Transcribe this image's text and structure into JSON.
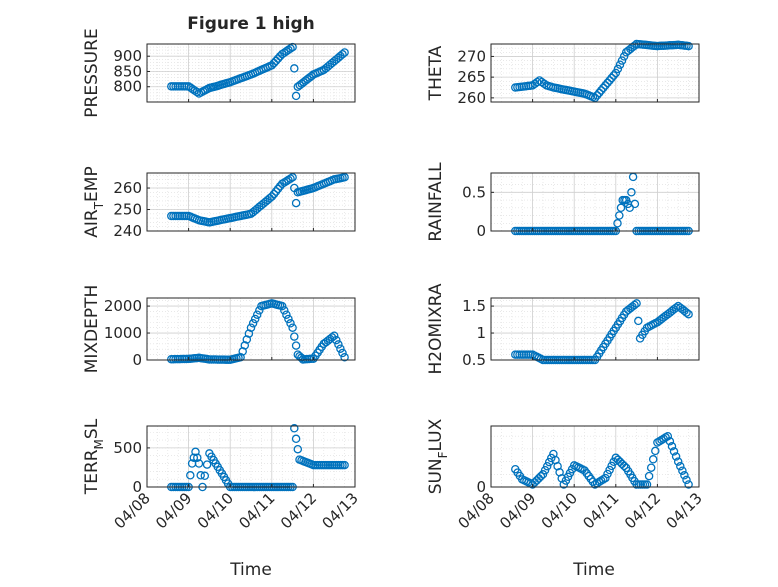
{
  "figure": {
    "title": "Figure 1 high",
    "xlabel": "Time",
    "x_tick_labels": [
      "04/08",
      "04/09",
      "04/10",
      "04/11",
      "04/12",
      "04/13"
    ],
    "marker_color": "#0072BD",
    "axis_color": "#262626",
    "grid_color": "#dcdcdc"
  },
  "chart_data": [
    {
      "type": "scatter",
      "ylabel": "PRESSURE",
      "ylim": [
        750,
        940
      ],
      "yticks": [
        800,
        850,
        900
      ],
      "grid": true,
      "x": [
        "04/08 14:00",
        "04/09 00:00",
        "04/09 06:00",
        "04/09 12:00",
        "04/09 15:00",
        "04/10 00:00",
        "04/10 12:00",
        "04/11 00:00",
        "04/11 06:00",
        "04/11 12:00",
        "04/11 13:00",
        "04/11 14:00",
        "04/11 15:00",
        "04/12 00:00",
        "04/12 06:00",
        "04/12 18:00"
      ],
      "y": [
        801,
        801,
        778,
        796,
        800,
        815,
        840,
        870,
        907,
        930,
        860,
        770,
        800,
        840,
        855,
        912
      ]
    },
    {
      "type": "scatter",
      "ylabel": "THETA",
      "ylim": [
        259,
        273
      ],
      "yticks": [
        260,
        265,
        270
      ],
      "grid": true,
      "x": [
        "04/08 14:00",
        "04/09 00:00",
        "04/09 04:00",
        "04/09 08:00",
        "04/09 12:00",
        "04/10 00:00",
        "04/10 06:00",
        "04/10 12:00",
        "04/11 00:00",
        "04/11 06:00",
        "04/11 12:00",
        "04/12 00:00",
        "04/12 12:00",
        "04/12 18:00"
      ],
      "y": [
        262.5,
        263,
        264.2,
        263,
        262.5,
        261.5,
        261,
        260,
        266,
        271,
        273,
        272.5,
        272.8,
        272.5
      ]
    },
    {
      "type": "scatter",
      "ylabel": "AIR_TEMP",
      "ylim": [
        240,
        267
      ],
      "yticks": [
        240,
        250,
        260
      ],
      "grid": true,
      "x": [
        "04/08 14:00",
        "04/09 00:00",
        "04/09 06:00",
        "04/09 12:00",
        "04/10 00:00",
        "04/10 12:00",
        "04/11 00:00",
        "04/11 06:00",
        "04/11 12:00",
        "04/11 13:00",
        "04/11 14:00",
        "04/11 15:00",
        "04/12 00:00",
        "04/12 12:00",
        "04/12 18:00"
      ],
      "y": [
        247,
        247,
        245,
        244,
        246,
        248,
        256,
        262,
        265,
        260,
        253,
        258,
        260,
        264,
        265
      ]
    },
    {
      "type": "scatter",
      "ylabel": "RAINFALL",
      "ylim": [
        0,
        0.75
      ],
      "yticks": [
        0,
        0.5
      ],
      "grid": true,
      "x": [
        "04/08 14:00",
        "04/09 06:00",
        "04/10 00:00",
        "04/10 12:00",
        "04/11 00:00",
        "04/11 02:00",
        "04/11 04:00",
        "04/11 06:00",
        "04/11 08:00",
        "04/11 10:00",
        "04/11 12:00",
        "04/12 00:00",
        "04/12 12:00",
        "04/12 18:00"
      ],
      "y": [
        0,
        0,
        0,
        0,
        0,
        0.2,
        0.4,
        0.4,
        0.3,
        0.7,
        0,
        0,
        0,
        0
      ]
    },
    {
      "type": "scatter",
      "ylabel": "MIXDEPTH",
      "ylim": [
        0,
        2300
      ],
      "yticks": [
        0,
        1000,
        2000
      ],
      "grid": true,
      "x": [
        "04/08 14:00",
        "04/09 00:00",
        "04/09 06:00",
        "04/09 12:00",
        "04/10 00:00",
        "04/10 06:00",
        "04/10 12:00",
        "04/10 18:00",
        "04/11 00:00",
        "04/11 06:00",
        "04/11 12:00",
        "04/11 15:00",
        "04/11 18:00",
        "04/12 00:00",
        "04/12 06:00",
        "04/12 12:00",
        "04/12 18:00"
      ],
      "y": [
        30,
        40,
        80,
        20,
        10,
        100,
        1200,
        2000,
        2100,
        2000,
        1200,
        200,
        20,
        50,
        600,
        900,
        100
      ]
    },
    {
      "type": "scatter",
      "ylabel": "H2OMIXRA",
      "ylim": [
        0.5,
        1.65
      ],
      "yticks": [
        0.5,
        1,
        1.5
      ],
      "grid": true,
      "x": [
        "04/08 14:00",
        "04/09 00:00",
        "04/09 06:00",
        "04/10 00:00",
        "04/10 12:00",
        "04/11 00:00",
        "04/11 06:00",
        "04/11 12:00",
        "04/11 14:00",
        "04/11 18:00",
        "04/12 00:00",
        "04/12 06:00",
        "04/12 12:00",
        "04/12 18:00"
      ],
      "y": [
        0.6,
        0.6,
        0.5,
        0.5,
        0.5,
        1.1,
        1.4,
        1.55,
        0.9,
        1.1,
        1.2,
        1.35,
        1.5,
        1.35
      ]
    },
    {
      "type": "scatter",
      "ylabel": "TERR_MSL",
      "ylim": [
        0,
        780
      ],
      "yticks": [
        0,
        500
      ],
      "grid": true,
      "x": [
        "04/08 14:00",
        "04/09 00:00",
        "04/09 02:00",
        "04/09 04:00",
        "04/09 06:00",
        "04/09 08:00",
        "04/09 12:00",
        "04/10 00:00",
        "04/10 12:00",
        "04/11 00:00",
        "04/11 06:00",
        "04/11 12:00",
        "04/11 13:00",
        "04/11 16:00",
        "04/12 00:00",
        "04/12 18:00"
      ],
      "y": [
        0,
        0,
        300,
        450,
        300,
        0,
        430,
        0,
        0,
        0,
        0,
        0,
        750,
        350,
        280,
        280
      ]
    },
    {
      "type": "scatter",
      "ylabel": "SUN_FLUX",
      "ylim": [
        0,
        480
      ],
      "yticks": [
        0,
        500
      ],
      "grid": true,
      "x": [
        "04/08 14:00",
        "04/08 18:00",
        "04/09 00:00",
        "04/09 06:00",
        "04/09 12:00",
        "04/09 18:00",
        "04/10 00:00",
        "04/10 06:00",
        "04/10 12:00",
        "04/10 18:00",
        "04/11 00:00",
        "04/11 06:00",
        "04/11 12:00",
        "04/11 18:00",
        "04/12 00:00",
        "04/12 06:00",
        "04/12 12:00",
        "04/12 18:00"
      ],
      "y": [
        140,
        60,
        20,
        100,
        260,
        20,
        170,
        130,
        20,
        70,
        230,
        150,
        20,
        20,
        350,
        400,
        200,
        20
      ]
    }
  ]
}
